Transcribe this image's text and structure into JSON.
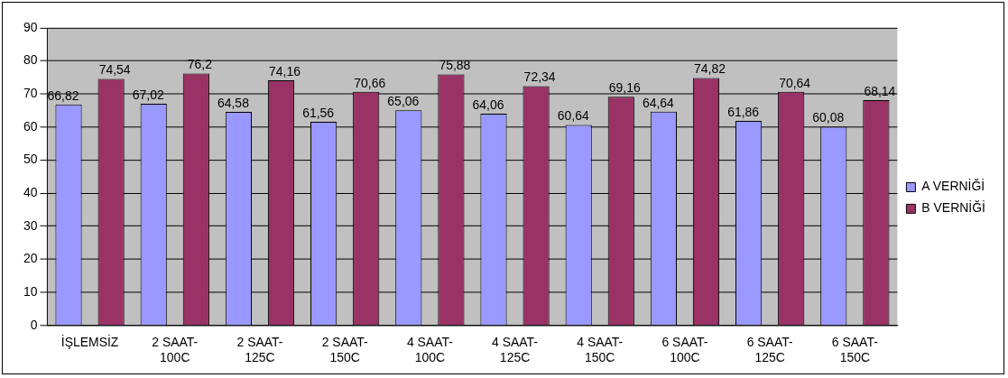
{
  "chart_data": {
    "type": "bar",
    "categories": [
      "İŞLEMSİZ",
      "2 SAAT-100C",
      "2 SAAT-125C",
      "2 SAAT-150C",
      "4 SAAT-100C",
      "4 SAAT-125C",
      "4 SAAT-150C",
      "6 SAAT-100C",
      "6 SAAT-125C",
      "6 SAAT-150C"
    ],
    "series": [
      {
        "name": "A VERNİĞİ",
        "color": "#9999ff",
        "values": [
          66.82,
          67.02,
          64.58,
          61.56,
          65.06,
          64.06,
          60.64,
          64.64,
          61.86,
          60.08
        ],
        "value_labels": [
          "66,82",
          "67,02",
          "64,58",
          "61,56",
          "65,06",
          "64,06",
          "60,64",
          "64,64",
          "61,86",
          "60,08"
        ]
      },
      {
        "name": "B VERNİĞİ",
        "color": "#993366",
        "values": [
          74.54,
          76.2,
          74.16,
          70.66,
          75.88,
          72.34,
          69.16,
          74.82,
          70.64,
          68.14
        ],
        "value_labels": [
          "74,54",
          "76,2",
          "74,16",
          "70,66",
          "75,88",
          "72,34",
          "69,16",
          "74,82",
          "70,64",
          "68,14"
        ]
      }
    ],
    "ylim": [
      0,
      90
    ],
    "yticks": [
      0,
      10,
      20,
      30,
      40,
      50,
      60,
      70,
      80,
      90
    ],
    "grid": "y",
    "legend": "right"
  }
}
